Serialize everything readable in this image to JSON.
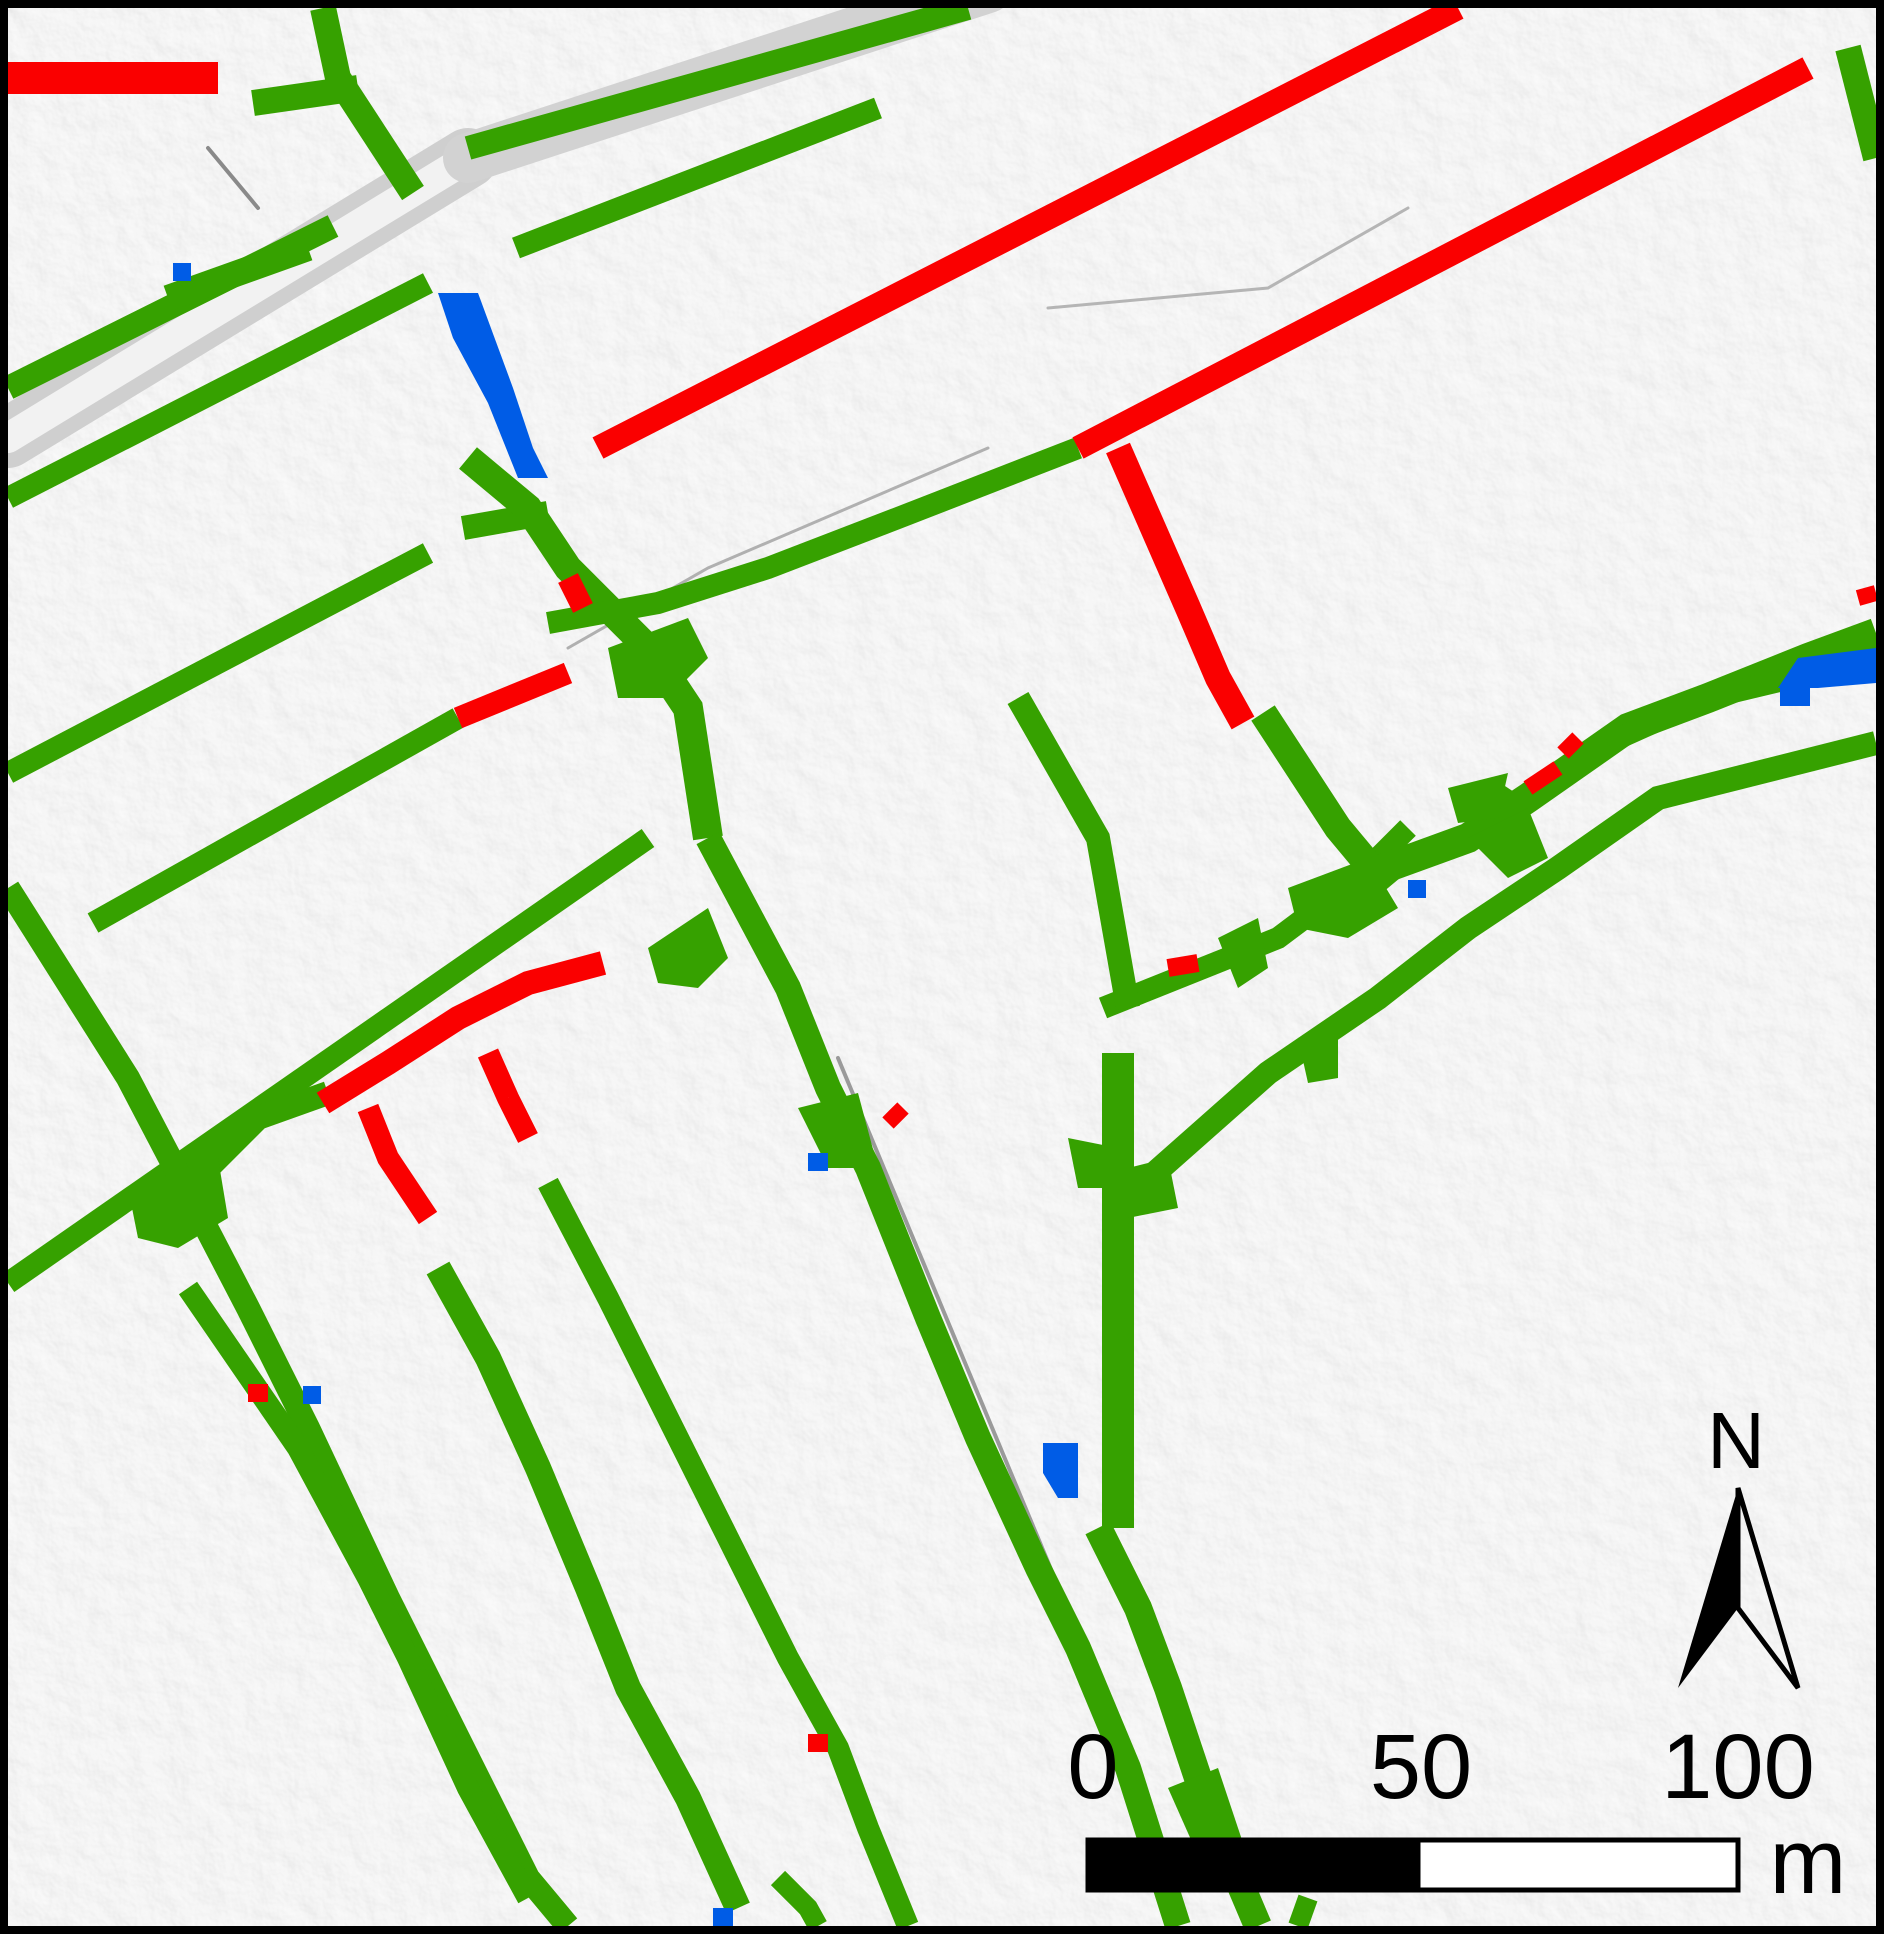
{
  "legend_colors": {
    "green": "#36a100",
    "red": "#fa0000",
    "blue": "#005ce6",
    "background": "#e4e4e4"
  },
  "north_arrow": {
    "label": "N",
    "icon": "north-arrow-icon"
  },
  "scale_bar": {
    "labels": [
      "0",
      "50",
      "100"
    ],
    "unit": "m"
  }
}
